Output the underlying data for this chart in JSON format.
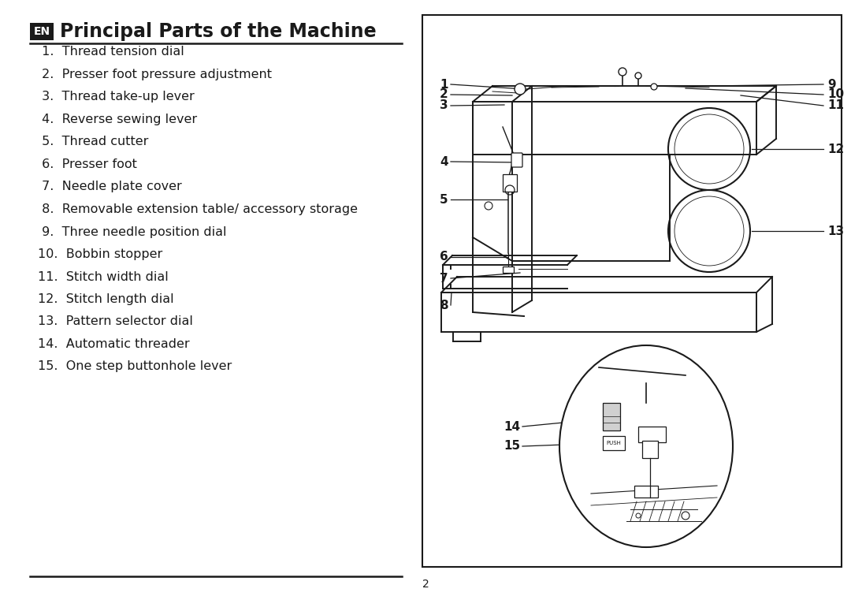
{
  "title": "Principal Parts of the Machine",
  "en_label": "EN",
  "page_number": "2",
  "background_color": "#ffffff",
  "text_color": "#1a1a1a",
  "parts_left": [
    " 1.  Thread tension dial",
    " 2.  Presser foot pressure adjustment",
    " 3.  Thread take-up lever",
    " 4.  Reverse sewing lever",
    " 5.  Thread cutter",
    " 6.  Presser foot",
    " 7.  Needle plate cover",
    " 8.  Removable extension table/ accessory storage",
    " 9.  Three needle position dial",
    "10.  Bobbin stopper",
    "11.  Stitch width dial",
    "12.  Stitch length dial",
    "13.  Pattern selector dial",
    "14.  Automatic threader",
    "15.  One step buttonhole lever"
  ],
  "header_line_color": "#1a1a1a",
  "box_border_color": "#1a1a1a",
  "font_size_title": 17,
  "font_size_parts": 11.5,
  "font_size_nums": 11
}
